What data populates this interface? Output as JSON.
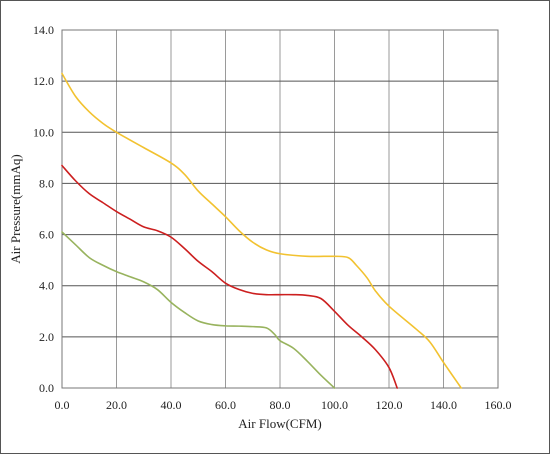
{
  "chart_data": {
    "type": "line",
    "title": "",
    "xlabel": "Air Flow(CFM)",
    "ylabel": "Air Pressure(mmAq)",
    "xlim": [
      0,
      160
    ],
    "ylim": [
      0,
      14
    ],
    "x_ticks": [
      "0.0",
      "20.0",
      "40.0",
      "60.0",
      "80.0",
      "100.0",
      "120.0",
      "140.0",
      "160.0"
    ],
    "y_ticks": [
      "0.0",
      "2.0",
      "4.0",
      "6.0",
      "8.0",
      "10.0",
      "12.0",
      "14.0"
    ],
    "grid": true,
    "legend": false,
    "series": [
      {
        "color": "#f2c230",
        "x": [
          0,
          5,
          10,
          15,
          20,
          30,
          40,
          45,
          50,
          55,
          60,
          65,
          70,
          75,
          80,
          90,
          100,
          105,
          108,
          112,
          115,
          120,
          130,
          135,
          140,
          146.5
        ],
        "y": [
          12.3,
          11.4,
          10.8,
          10.35,
          10.0,
          9.4,
          8.8,
          8.35,
          7.7,
          7.2,
          6.7,
          6.15,
          5.7,
          5.4,
          5.25,
          5.15,
          5.15,
          5.1,
          4.8,
          4.3,
          3.8,
          3.2,
          2.3,
          1.8,
          1.0,
          0.0
        ]
      },
      {
        "color": "#cc1f1f",
        "x": [
          0,
          5,
          10,
          15,
          20,
          25,
          30,
          35,
          40,
          45,
          50,
          55,
          60,
          65,
          70,
          75,
          80,
          85,
          90,
          95,
          100,
          105,
          110,
          115,
          120,
          123
        ],
        "y": [
          8.7,
          8.1,
          7.6,
          7.25,
          6.9,
          6.6,
          6.3,
          6.15,
          5.9,
          5.45,
          4.95,
          4.55,
          4.1,
          3.85,
          3.7,
          3.65,
          3.65,
          3.65,
          3.62,
          3.5,
          3.0,
          2.45,
          2.0,
          1.5,
          0.8,
          0.0
        ]
      },
      {
        "color": "#98b35e",
        "x": [
          0,
          5,
          10,
          15,
          20,
          25,
          30,
          35,
          40,
          45,
          50,
          55,
          60,
          65,
          70,
          75,
          78,
          80,
          85,
          90,
          95,
          100
        ],
        "y": [
          6.1,
          5.6,
          5.1,
          4.8,
          4.55,
          4.35,
          4.15,
          3.85,
          3.35,
          2.95,
          2.62,
          2.48,
          2.43,
          2.42,
          2.4,
          2.35,
          2.1,
          1.85,
          1.55,
          1.05,
          0.5,
          0.0
        ]
      }
    ]
  }
}
